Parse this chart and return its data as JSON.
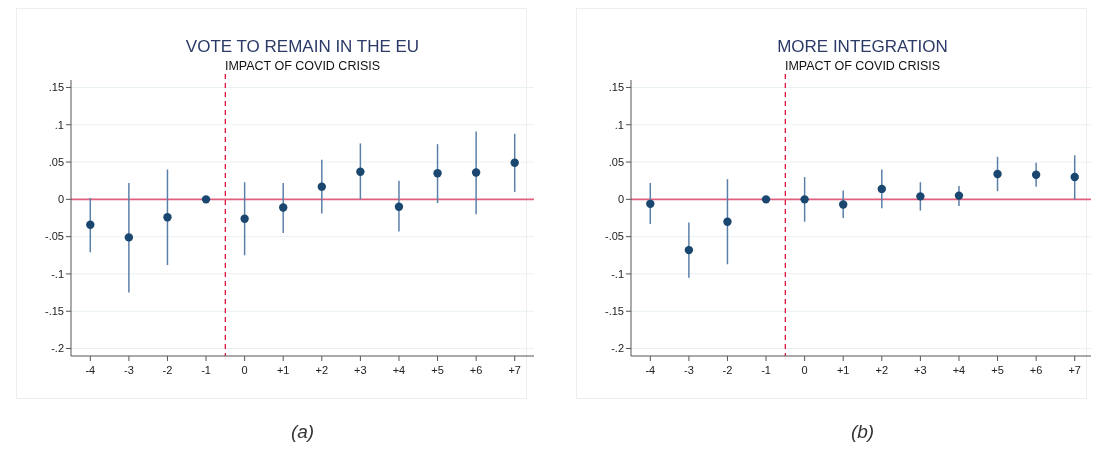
{
  "chart_data": [
    {
      "type": "scatter",
      "title": "VOTE TO REMAIN IN THE EU",
      "subtitle": "IMPACT OF COVID CRISIS",
      "x": [
        -4,
        -3,
        -2,
        -1,
        0,
        1,
        2,
        3,
        4,
        5,
        6,
        7
      ],
      "series": [
        {
          "color": "#1a476f",
          "values": [
            -0.034,
            -0.051,
            -0.024,
            0,
            -0.026,
            -0.011,
            0.017,
            0.037,
            -0.01,
            0.035,
            0.036,
            0.049
          ],
          "errors": [
            [
              -0.071,
              0.002
            ],
            [
              -0.125,
              0.022
            ],
            [
              -0.088,
              0.04
            ],
            null,
            [
              -0.075,
              0.023
            ],
            [
              -0.045,
              0.022
            ],
            [
              -0.019,
              0.053
            ],
            [
              0,
              0.075
            ],
            [
              -0.043,
              0.025
            ],
            [
              -0.005,
              0.074
            ],
            [
              -0.02,
              0.091
            ],
            [
              0.01,
              0.088
            ]
          ]
        }
      ],
      "xlim": [
        -4.5,
        7.5
      ],
      "xticks": [
        -4,
        -3,
        -2,
        -1,
        0,
        {
          "value": 1,
          "label": "+1"
        },
        {
          "value": 2,
          "label": "+2"
        },
        {
          "value": 3,
          "label": "+3"
        },
        {
          "value": 4,
          "label": "+4"
        },
        {
          "value": 5,
          "label": "+5"
        },
        {
          "value": 6,
          "label": "+6"
        },
        {
          "value": 7,
          "label": "+7"
        }
      ],
      "ylim": [
        -0.21,
        0.16
      ],
      "yticks": [
        {
          "value": -0.2,
          "label": "-.2"
        },
        {
          "value": -0.15,
          "label": "-.15"
        },
        {
          "value": -0.1,
          "label": "-.1"
        },
        {
          "value": -0.05,
          "label": "-.05"
        },
        0,
        {
          "value": 0.05,
          "label": ".05"
        },
        {
          "value": 0.1,
          "label": ".1"
        },
        {
          "value": 0.15,
          "label": ".15"
        }
      ],
      "grid": "y",
      "marker": "circle",
      "ref_lines": [
        {
          "axis": "y",
          "value": 0,
          "color": "#e0607e",
          "line_style": "solid"
        },
        {
          "axis": "x",
          "value": -0.5,
          "color": "#dc143c",
          "line_style": "dashed"
        }
      ],
      "annotations": [
        "(a)"
      ]
    },
    {
      "type": "scatter",
      "title": "MORE INTEGRATION",
      "subtitle": "IMPACT OF COVID CRISIS",
      "x": [
        -4,
        -3,
        -2,
        -1,
        0,
        1,
        2,
        3,
        4,
        5,
        6,
        7
      ],
      "series": [
        {
          "color": "#1a476f",
          "values": [
            -0.006,
            -0.068,
            -0.03,
            0,
            0,
            -0.007,
            0.014,
            0.004,
            0.005,
            0.034,
            0.033,
            0.03
          ],
          "errors": [
            [
              -0.033,
              0.022
            ],
            [
              -0.105,
              -0.031
            ],
            [
              -0.087,
              0.027
            ],
            null,
            [
              -0.03,
              0.03
            ],
            [
              -0.025,
              0.012
            ],
            [
              -0.012,
              0.04
            ],
            [
              -0.015,
              0.023
            ],
            [
              -0.009,
              0.018
            ],
            [
              0.011,
              0.057
            ],
            [
              0.017,
              0.049
            ],
            [
              0,
              0.059
            ]
          ]
        }
      ],
      "xlim": [
        -4.5,
        7.5
      ],
      "xticks": [
        -4,
        -3,
        -2,
        -1,
        0,
        {
          "value": 1,
          "label": "+1"
        },
        {
          "value": 2,
          "label": "+2"
        },
        {
          "value": 3,
          "label": "+3"
        },
        {
          "value": 4,
          "label": "+4"
        },
        {
          "value": 5,
          "label": "+5"
        },
        {
          "value": 6,
          "label": "+6"
        },
        {
          "value": 7,
          "label": "+7"
        }
      ],
      "ylim": [
        -0.21,
        0.16
      ],
      "yticks": [
        {
          "value": -0.2,
          "label": "-.2"
        },
        {
          "value": -0.15,
          "label": "-.15"
        },
        {
          "value": -0.1,
          "label": "-.1"
        },
        {
          "value": -0.05,
          "label": "-.05"
        },
        0,
        {
          "value": 0.05,
          "label": ".05"
        },
        {
          "value": 0.1,
          "label": ".1"
        },
        {
          "value": 0.15,
          "label": ".15"
        }
      ],
      "grid": "y",
      "marker": "circle",
      "ref_lines": [
        {
          "axis": "y",
          "value": 0,
          "color": "#e0607e",
          "line_style": "solid"
        },
        {
          "axis": "x",
          "value": -0.5,
          "color": "#dc143c",
          "line_style": "dashed"
        }
      ],
      "annotations": [
        "(b)"
      ]
    }
  ]
}
